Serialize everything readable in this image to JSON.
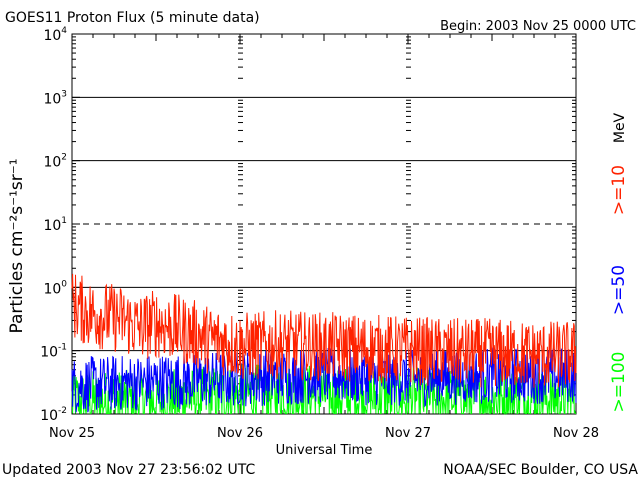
{
  "chart_data": {
    "type": "line",
    "title": "GOES11 Proton Flux (5 minute data)",
    "begin_label": "Begin: 2003 Nov 25 0000 UTC",
    "xlabel": "Universal Time",
    "ylabel": "Particles cm⁻²s⁻¹sr⁻¹",
    "unit_label": "MeV",
    "y_scale": "log",
    "ylim": [
      0.01,
      10000
    ],
    "yticks": [
      {
        "base": "10",
        "exp": "-2"
      },
      {
        "base": "10",
        "exp": "-1"
      },
      {
        "base": "10",
        "exp": "0"
      },
      {
        "base": "10",
        "exp": "1"
      },
      {
        "base": "10",
        "exp": "2"
      },
      {
        "base": "10",
        "exp": "3"
      },
      {
        "base": "10",
        "exp": "4"
      }
    ],
    "x_ticks": [
      "Nov 25",
      "Nov 26",
      "Nov 27",
      "Nov 28"
    ],
    "xlim_days": [
      0,
      3
    ],
    "series": [
      {
        "name": ">=10",
        "color": "#ff2200",
        "x_days": [
          0,
          0.1,
          0.2,
          0.3,
          0.4,
          0.5,
          0.6,
          0.7,
          0.8,
          0.9,
          1.0,
          1.25,
          1.5,
          1.75,
          2.0,
          2.25,
          2.5,
          2.75,
          3.0
        ],
        "values": [
          0.7,
          0.5,
          0.45,
          0.4,
          0.3,
          0.35,
          0.3,
          0.25,
          0.2,
          0.18,
          0.15,
          0.16,
          0.15,
          0.14,
          0.13,
          0.12,
          0.12,
          0.11,
          0.11
        ]
      },
      {
        "name": ">=50",
        "color": "#0000ff",
        "x_days": [
          0,
          0.5,
          1.0,
          1.5,
          2.0,
          2.5,
          3.0
        ],
        "values": [
          0.035,
          0.04,
          0.045,
          0.05,
          0.045,
          0.05,
          0.05
        ]
      },
      {
        "name": ">=100",
        "color": "#00ff00",
        "x_days": [
          0,
          0.5,
          1.0,
          1.5,
          2.0,
          2.5,
          3.0
        ],
        "values": [
          0.02,
          0.02,
          0.025,
          0.025,
          0.022,
          0.022,
          0.022
        ]
      }
    ],
    "threshold_line": 10,
    "grid": "horizontal lines at decades; vertical tick columns at day boundaries"
  },
  "footer": {
    "updated": "Updated 2003 Nov 27 23:56:02 UTC",
    "source": "NOAA/SEC Boulder, CO USA"
  }
}
